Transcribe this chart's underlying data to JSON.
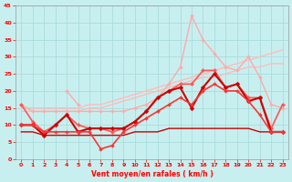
{
  "xlabel": "Vent moyen/en rafales ( km/h )",
  "xlim": [
    -0.5,
    23.5
  ],
  "ylim": [
    0,
    45
  ],
  "yticks": [
    0,
    5,
    10,
    15,
    20,
    25,
    30,
    35,
    40,
    45
  ],
  "xticks": [
    0,
    1,
    2,
    3,
    4,
    5,
    6,
    7,
    8,
    9,
    10,
    11,
    12,
    13,
    14,
    15,
    16,
    17,
    18,
    19,
    20,
    21,
    22,
    23
  ],
  "background_color": "#c8efef",
  "grid_color": "#aadddd",
  "series": [
    {
      "x": [
        0,
        1,
        2,
        3,
        4,
        5,
        6,
        7,
        8,
        9,
        10,
        11,
        12,
        13,
        14,
        15,
        16,
        17,
        18,
        19,
        20,
        21,
        22,
        23
      ],
      "y": [
        15,
        15,
        15,
        15,
        15,
        15,
        16,
        16,
        17,
        18,
        19,
        20,
        21,
        22,
        23,
        24,
        25,
        26,
        27,
        28,
        29,
        30,
        31,
        32
      ],
      "color": "#ffbbbb",
      "lw": 1.0,
      "marker": null
    },
    {
      "x": [
        0,
        1,
        2,
        3,
        4,
        5,
        6,
        7,
        8,
        9,
        10,
        11,
        12,
        13,
        14,
        15,
        16,
        17,
        18,
        19,
        20,
        21,
        22,
        23
      ],
      "y": [
        14,
        14,
        14,
        14,
        14,
        14,
        15,
        15,
        16,
        17,
        18,
        19,
        20,
        21,
        22,
        23,
        24,
        24,
        25,
        26,
        27,
        27,
        28,
        28
      ],
      "color": "#ffbbbb",
      "lw": 1.0,
      "marker": null
    },
    {
      "x": [
        0,
        1,
        2,
        3,
        4,
        5,
        6,
        7,
        8,
        9,
        10,
        11,
        12,
        13,
        14,
        15,
        16,
        17,
        18,
        19,
        20,
        21,
        22,
        23
      ],
      "y": [
        16,
        14,
        14,
        14,
        14,
        14,
        14,
        14,
        14,
        14,
        15,
        16,
        18,
        22,
        27,
        42,
        35,
        31,
        27,
        26,
        30,
        24,
        16,
        15
      ],
      "color": "#ffaaaa",
      "lw": 1.0,
      "marker": "D",
      "ms": 2.0
    },
    {
      "x": [
        0,
        1,
        2,
        3,
        4,
        5,
        6,
        7,
        8,
        9,
        10,
        11,
        12,
        13,
        14,
        15,
        16,
        17,
        18,
        19,
        20,
        21,
        22,
        23
      ],
      "y": [
        null,
        null,
        null,
        null,
        20,
        16,
        null,
        null,
        null,
        null,
        null,
        null,
        null,
        null,
        null,
        null,
        null,
        null,
        null,
        null,
        null,
        null,
        null,
        null
      ],
      "color": "#ffaaaa",
      "lw": 1.0,
      "marker": "D",
      "ms": 2.0
    },
    {
      "x": [
        0,
        1,
        2,
        3,
        4,
        5,
        6,
        7,
        8,
        9,
        10,
        11,
        12,
        13,
        14,
        15,
        16,
        17,
        18,
        19,
        20,
        21,
        22,
        23
      ],
      "y": [
        16,
        11,
        8,
        10,
        13,
        10,
        9,
        9,
        8,
        9,
        11,
        14,
        18,
        20,
        22,
        22,
        26,
        26,
        21,
        22,
        18,
        18,
        9,
        16
      ],
      "color": "#ff5555",
      "lw": 1.2,
      "marker": "D",
      "ms": 2.2
    },
    {
      "x": [
        0,
        1,
        2,
        3,
        4,
        5,
        6,
        7,
        8,
        9,
        10,
        11,
        12,
        13,
        14,
        15,
        16,
        17,
        18,
        19,
        20,
        21,
        22,
        23
      ],
      "y": [
        10,
        10,
        7,
        10,
        13,
        8,
        9,
        9,
        9,
        9,
        11,
        14,
        18,
        20,
        21,
        15,
        21,
        25,
        21,
        22,
        17,
        18,
        8,
        8
      ],
      "color": "#cc0000",
      "lw": 1.5,
      "marker": "D",
      "ms": 2.5
    },
    {
      "x": [
        0,
        1,
        2,
        3,
        4,
        5,
        6,
        7,
        8,
        9,
        10,
        11,
        12,
        13,
        14,
        15,
        16,
        17,
        18,
        19,
        20,
        21,
        22,
        23
      ],
      "y": [
        8,
        8,
        7,
        7,
        7,
        7,
        7,
        7,
        7,
        7,
        8,
        8,
        8,
        9,
        9,
        9,
        9,
        9,
        9,
        9,
        9,
        8,
        8,
        8
      ],
      "color": "#cc0000",
      "lw": 1.0,
      "marker": null
    },
    {
      "x": [
        0,
        1,
        2,
        3,
        4,
        5,
        6,
        7,
        8,
        9,
        10,
        11,
        12,
        13,
        14,
        15,
        16,
        17,
        18,
        19,
        20,
        21,
        22,
        23
      ],
      "y": [
        10,
        10,
        8,
        8,
        8,
        8,
        8,
        3,
        4,
        8,
        10,
        12,
        14,
        16,
        18,
        16,
        20,
        22,
        20,
        20,
        17,
        13,
        8,
        8
      ],
      "color": "#ff3333",
      "lw": 1.2,
      "marker": "D",
      "ms": 2.0
    }
  ]
}
